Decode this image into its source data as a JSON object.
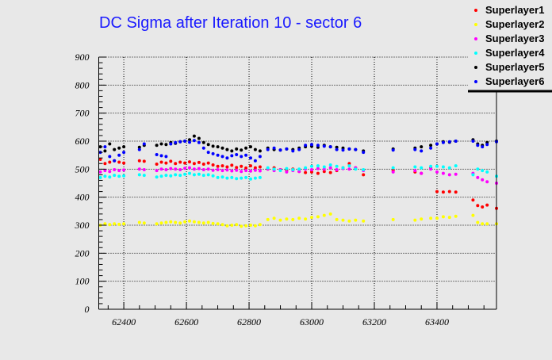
{
  "chart_data": {
    "type": "scatter",
    "title": "DC Sigma after Iteration 10 - sector 6",
    "xlabel": "",
    "ylabel": "",
    "xlim": [
      62320,
      63590
    ],
    "ylim": [
      0,
      900
    ],
    "grid": true,
    "legend_position": "top-right",
    "x_ticks": [
      62400,
      62600,
      62800,
      63000,
      63200,
      63400
    ],
    "y_ticks": [
      0,
      100,
      200,
      300,
      400,
      500,
      600,
      700,
      800,
      900
    ],
    "x": [
      62325,
      62340,
      62355,
      62370,
      62385,
      62400,
      62450,
      62465,
      62505,
      62520,
      62535,
      62550,
      62565,
      62580,
      62595,
      62610,
      62625,
      62640,
      62655,
      62670,
      62685,
      62700,
      62715,
      62730,
      62745,
      62760,
      62775,
      62790,
      62805,
      62820,
      62835,
      62860,
      62880,
      62900,
      62920,
      62940,
      62960,
      62980,
      63000,
      63020,
      63040,
      63060,
      63080,
      63100,
      63120,
      63140,
      63165,
      63260,
      63330,
      63350,
      63380,
      63400,
      63420,
      63440,
      63460,
      63515,
      63530,
      63545,
      63560,
      63590
    ],
    "series": [
      {
        "name": "Superlayer1",
        "color": "#ff0000",
        "values": [
          535,
          520,
          525,
          530,
          525,
          522,
          530,
          528,
          518,
          525,
          522,
          528,
          520,
          525,
          522,
          526,
          520,
          524,
          518,
          522,
          515,
          510,
          512,
          508,
          514,
          506,
          510,
          504,
          512,
          505,
          508,
          500,
          505,
          498,
          495,
          500,
          492,
          488,
          490,
          485,
          492,
          488,
          495,
          505,
          520,
          505,
          480,
          495,
          490,
          485,
          505,
          420,
          418,
          420,
          418,
          390,
          370,
          365,
          372,
          360
        ]
      },
      {
        "name": "Superlayer2",
        "color": "#ffff00",
        "values": [
          300,
          305,
          302,
          305,
          303,
          305,
          310,
          308,
          305,
          308,
          310,
          312,
          310,
          308,
          312,
          315,
          312,
          310,
          308,
          310,
          306,
          305,
          302,
          298,
          300,
          302,
          296,
          298,
          300,
          298,
          302,
          320,
          325,
          318,
          322,
          320,
          325,
          322,
          328,
          330,
          335,
          340,
          320,
          318,
          315,
          318,
          315,
          320,
          318,
          322,
          325,
          325,
          330,
          328,
          332,
          335,
          310,
          305,
          305,
          305
        ]
      },
      {
        "name": "Superlayer3",
        "color": "#ff00ff",
        "values": [
          490,
          495,
          492,
          498,
          495,
          497,
          500,
          498,
          495,
          500,
          498,
          502,
          500,
          498,
          503,
          505,
          500,
          502,
          498,
          500,
          496,
          498,
          495,
          497,
          494,
          496,
          492,
          495,
          493,
          496,
          494,
          500,
          495,
          498,
          490,
          495,
          492,
          500,
          498,
          502,
          500,
          505,
          498,
          502,
          500,
          505,
          495,
          490,
          495,
          485,
          500,
          490,
          485,
          480,
          482,
          485,
          470,
          462,
          455,
          450
        ]
      },
      {
        "name": "Superlayer4",
        "color": "#00ffff",
        "values": [
          470,
          475,
          472,
          478,
          475,
          476,
          480,
          478,
          472,
          475,
          478,
          476,
          480,
          478,
          482,
          485,
          480,
          482,
          478,
          480,
          476,
          470,
          472,
          468,
          470,
          466,
          468,
          470,
          465,
          468,
          470,
          505,
          500,
          495,
          502,
          498,
          500,
          505,
          510,
          512,
          508,
          515,
          510,
          505,
          512,
          500,
          498,
          505,
          508,
          505,
          510,
          510,
          508,
          505,
          512,
          480,
          500,
          495,
          490,
          475
        ]
      },
      {
        "name": "Superlayer5",
        "color": "#000000",
        "values": [
          580,
          565,
          590,
          570,
          575,
          580,
          578,
          585,
          585,
          590,
          588,
          595,
          592,
          598,
          600,
          605,
          618,
          610,
          595,
          588,
          582,
          580,
          575,
          570,
          565,
          572,
          568,
          575,
          580,
          570,
          565,
          575,
          570,
          568,
          572,
          570,
          575,
          580,
          582,
          578,
          585,
          580,
          578,
          575,
          572,
          570,
          565,
          572,
          575,
          580,
          585,
          590,
          598,
          596,
          600,
          605,
          590,
          585,
          595,
          600
        ]
      },
      {
        "name": "Superlayer6",
        "color": "#0000ff",
        "values": [
          560,
          580,
          545,
          530,
          550,
          560,
          570,
          590,
          552,
          548,
          545,
          590,
          595,
          598,
          600,
          596,
          602,
          595,
          575,
          560,
          555,
          550,
          545,
          540,
          548,
          552,
          545,
          550,
          540,
          530,
          545,
          570,
          575,
          568,
          572,
          565,
          570,
          585,
          588,
          585,
          582,
          580,
          570,
          568,
          572,
          570,
          560,
          568,
          570,
          565,
          575,
          590,
          595,
          598,
          600,
          600,
          585,
          580,
          588,
          598
        ]
      }
    ]
  }
}
